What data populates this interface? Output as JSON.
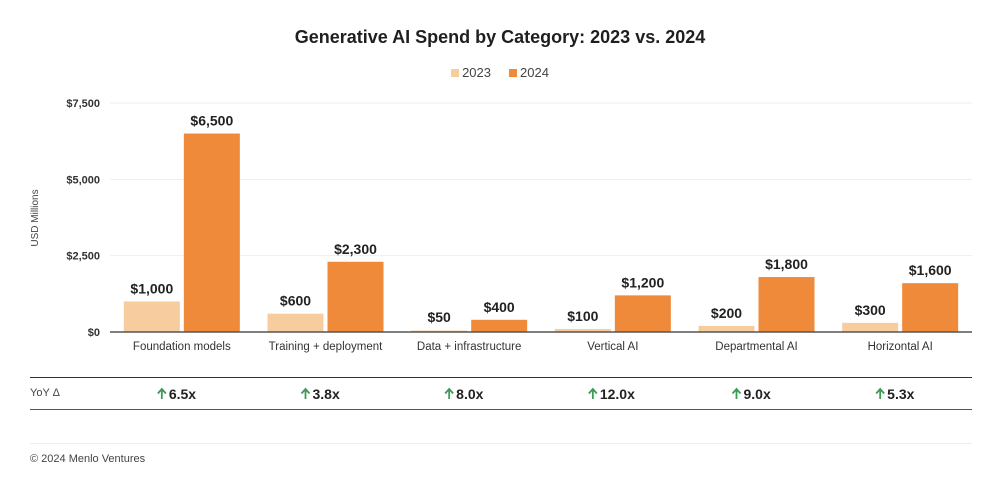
{
  "chart_data": {
    "type": "bar",
    "title": "Generative AI Spend by Category: 2023 vs. 2024",
    "xlabel": "",
    "ylabel": "USD Millions",
    "ylim": [
      0,
      7500
    ],
    "yticks": [
      0,
      2500,
      5000,
      7500
    ],
    "ytick_labels": [
      "$0",
      "$2,500",
      "$5,000",
      "$7,500"
    ],
    "grid": true,
    "legend_position": "top-center",
    "categories": [
      "Foundation models",
      "Training + deployment",
      "Data + infrastructure",
      "Vertical AI",
      "Departmental AI",
      "Horizontal AI"
    ],
    "series": [
      {
        "name": "2023",
        "color": "#f7cda0",
        "values": [
          1000,
          600,
          50,
          100,
          200,
          300
        ],
        "labels": [
          "$1,000",
          "$600",
          "$50",
          "$100",
          "$200",
          "$300"
        ]
      },
      {
        "name": "2024",
        "color": "#ef8a3a",
        "values": [
          6500,
          2300,
          400,
          1200,
          1800,
          1600
        ],
        "labels": [
          "$6,500",
          "$2,300",
          "$400",
          "$1,200",
          "$1,800",
          "$1,600"
        ]
      }
    ],
    "yoy": {
      "label": "YoY Δ",
      "values": [
        "6.5x",
        "3.8x",
        "8.0x",
        "12.0x",
        "9.0x",
        "5.3x"
      ],
      "arrow_color": "#3f9a5a"
    }
  },
  "footer": {
    "copyright": "© 2024 Menlo Ventures"
  }
}
